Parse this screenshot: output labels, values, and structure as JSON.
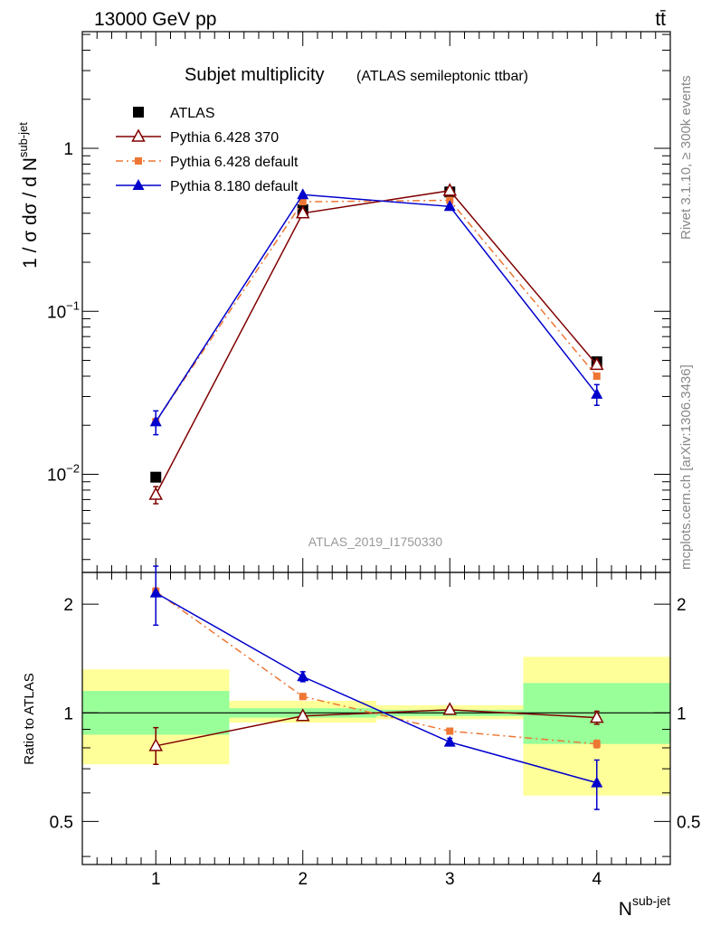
{
  "header": {
    "left": "13000 GeV pp",
    "right": "tt̄"
  },
  "side_labels": {
    "rivet": "Rivet 3.1.10, ≥ 300k events",
    "mcplots": "mcplots.cern.ch [arXiv:1306.3436]"
  },
  "chart_data": {
    "type": "line",
    "title": "Subjet multiplicity",
    "subtitle": "(ATLAS semileptonic ttbar)",
    "analysis_id": "ATLAS_2019_I1750330",
    "ylabel_main": "1 / σ dσ / d N",
    "ylabel_main_sup": "sub-jet",
    "ylabel_ratio": "Ratio to ATLAS",
    "xlabel": "N",
    "xlabel_sup": "sub-jet",
    "x": [
      1,
      2,
      3,
      4
    ],
    "xlim": [
      0.5,
      4.5
    ],
    "x_ticks": [
      "1",
      "2",
      "3",
      "4"
    ],
    "main": {
      "yscale": "log",
      "ylim": [
        0.0025,
        5.2
      ],
      "y_ticks": [
        {
          "value": 0.01,
          "label": "10",
          "exp": "−2"
        },
        {
          "value": 0.1,
          "label": "10",
          "exp": "−1"
        },
        {
          "value": 1,
          "label": "1",
          "exp": ""
        }
      ],
      "series": [
        {
          "name": "ATLAS",
          "color": "#000000",
          "marker": "square",
          "values": [
            0.0096,
            0.42,
            0.54,
            0.049
          ]
        },
        {
          "name": "Pythia 6.428 370",
          "color": "#800000",
          "marker": "triangle-open",
          "line": "solid",
          "values": [
            0.0075,
            0.4,
            0.55,
            0.047
          ],
          "err_lo": [
            0.0009,
            0.01,
            0.01,
            0.002
          ],
          "err_hi": [
            0.0009,
            0.01,
            0.01,
            0.002
          ]
        },
        {
          "name": "Pythia 6.428 default",
          "color": "#ee7733",
          "marker": "square-small",
          "line": "dashdot",
          "values": [
            0.021,
            0.47,
            0.48,
            0.04
          ],
          "err_lo": [
            0.001,
            0.01,
            0.01,
            0.001
          ],
          "err_hi": [
            0.001,
            0.01,
            0.01,
            0.001
          ]
        },
        {
          "name": "Pythia 8.180 default",
          "color": "#0000cc",
          "marker": "triangle",
          "line": "solid",
          "values": [
            0.021,
            0.52,
            0.44,
            0.031
          ],
          "err_lo": [
            0.0035,
            0.01,
            0.01,
            0.0045
          ],
          "err_hi": [
            0.0035,
            0.01,
            0.01,
            0.0045
          ]
        }
      ]
    },
    "ratio": {
      "yscale": "log",
      "ylim": [
        0.38,
        2.45
      ],
      "y_ticks": [
        {
          "value": 0.5,
          "label": "0.5"
        },
        {
          "value": 1,
          "label": "1"
        },
        {
          "value": 2,
          "label": "2"
        }
      ],
      "bands": [
        {
          "x0": 0.5,
          "x1": 1.5,
          "inner": [
            0.87,
            1.15
          ],
          "outer": [
            0.72,
            1.32
          ]
        },
        {
          "x0": 1.5,
          "x1": 2.5,
          "inner": [
            0.97,
            1.03
          ],
          "outer": [
            0.94,
            1.08
          ]
        },
        {
          "x0": 2.5,
          "x1": 3.5,
          "inner": [
            0.98,
            1.02
          ],
          "outer": [
            0.96,
            1.05
          ]
        },
        {
          "x0": 3.5,
          "x1": 4.5,
          "inner": [
            0.82,
            1.21
          ],
          "outer": [
            0.59,
            1.43
          ]
        }
      ],
      "band_colors": {
        "inner": "#99ff99",
        "outer": "#ffff99"
      },
      "series": [
        {
          "name": "Pythia 6.428 370",
          "color": "#800000",
          "marker": "triangle-open",
          "line": "solid",
          "values": [
            0.81,
            0.98,
            1.02,
            0.97
          ],
          "err_lo": [
            0.09,
            0.01,
            0.02,
            0.04
          ],
          "err_hi": [
            0.1,
            0.01,
            0.02,
            0.04
          ]
        },
        {
          "name": "Pythia 6.428 default",
          "color": "#ee7733",
          "marker": "square-small",
          "line": "dashdot",
          "values": [
            2.17,
            1.11,
            0.89,
            0.82
          ],
          "err_lo": [
            0.05,
            0.02,
            0.01,
            0.02
          ],
          "err_hi": [
            0.05,
            0.02,
            0.01,
            0.02
          ]
        },
        {
          "name": "Pythia 8.180 default",
          "color": "#0000cc",
          "marker": "triangle",
          "line": "solid",
          "values": [
            2.15,
            1.26,
            0.83,
            0.64
          ],
          "err_lo": [
            0.4,
            0.04,
            0.02,
            0.1
          ],
          "err_hi": [
            0.4,
            0.04,
            0.02,
            0.1
          ]
        }
      ]
    },
    "legend": {
      "position": "top-left"
    }
  }
}
